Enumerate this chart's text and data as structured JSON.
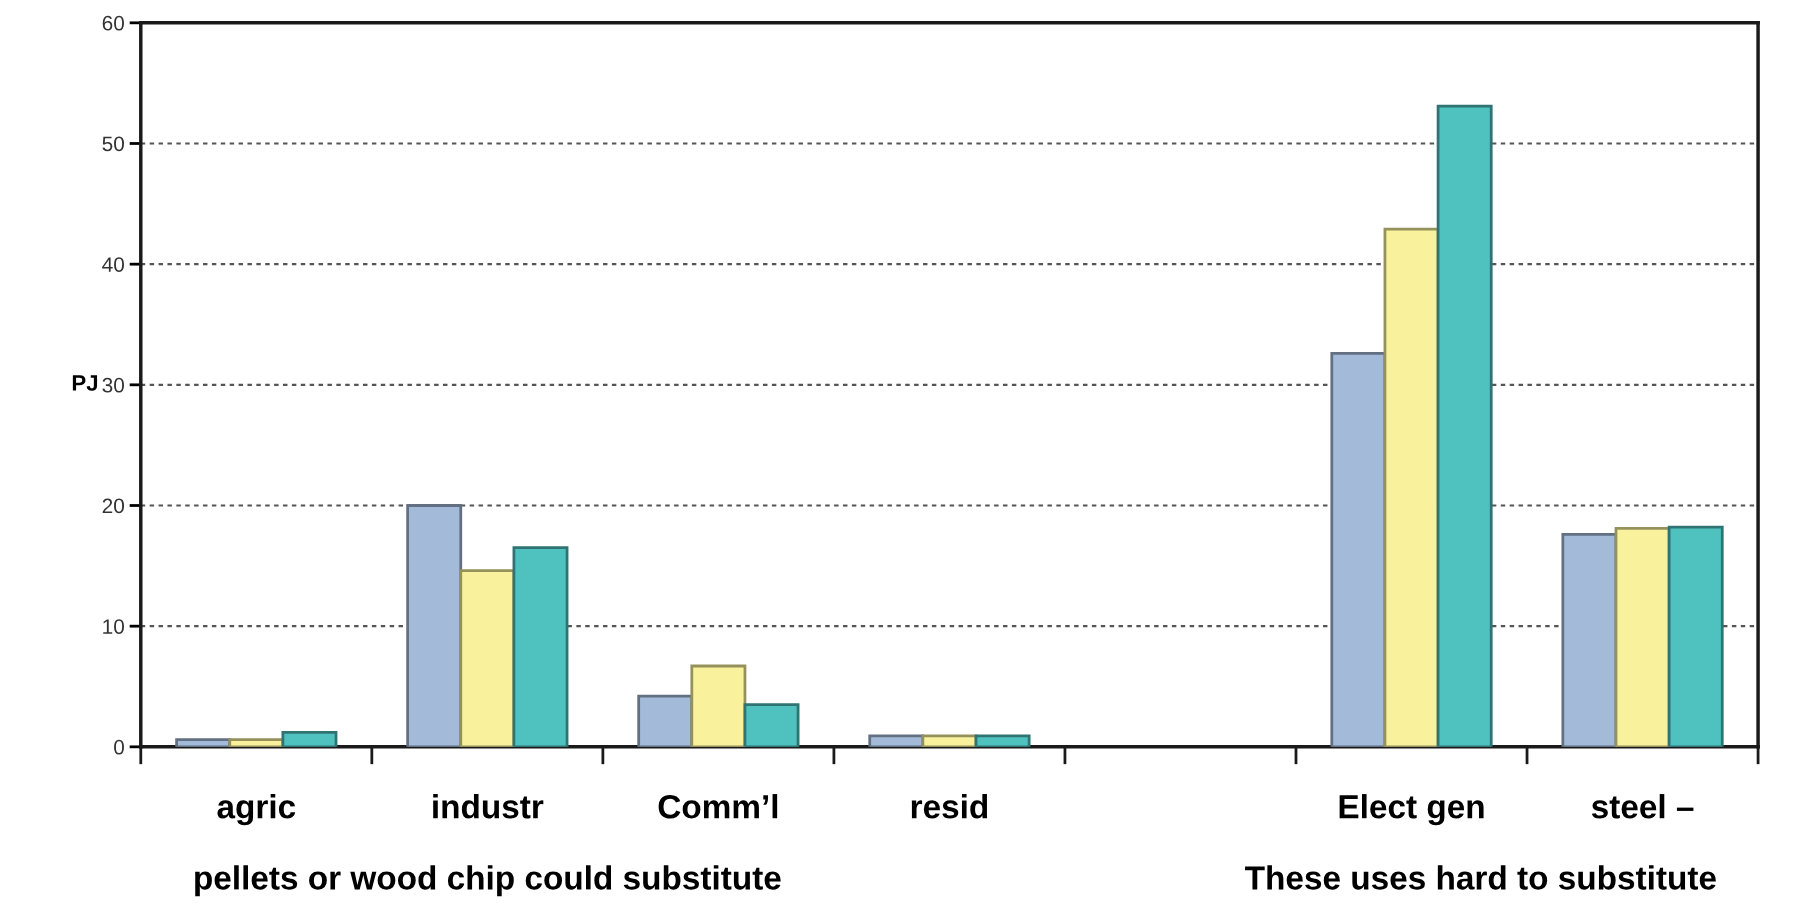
{
  "chart_data": {
    "type": "bar",
    "categories": [
      "agric",
      "industr",
      "Comm’l",
      "resid",
      null,
      "Elect gen",
      "steel –"
    ],
    "series": [
      {
        "color": "#a3bbd9",
        "values": [
          0.6,
          20,
          4.2,
          0.9,
          null,
          32.6,
          17.6
        ]
      },
      {
        "color": "#f9f19b",
        "values": [
          0.6,
          14.6,
          6.7,
          0.9,
          null,
          42.9,
          18.1
        ]
      },
      {
        "color": "#4fc2bf",
        "values": [
          1.2,
          16.5,
          3.5,
          0.9,
          null,
          53.1,
          18.2
        ]
      }
    ],
    "ylabel": "PJ",
    "ylim": [
      0,
      60
    ],
    "yticks": [
      0,
      10,
      20,
      30,
      40,
      50,
      60
    ],
    "grid": "y",
    "legend": false,
    "annotations": [
      "pellets or wood chip could substitute",
      "These uses hard to substitute"
    ]
  }
}
